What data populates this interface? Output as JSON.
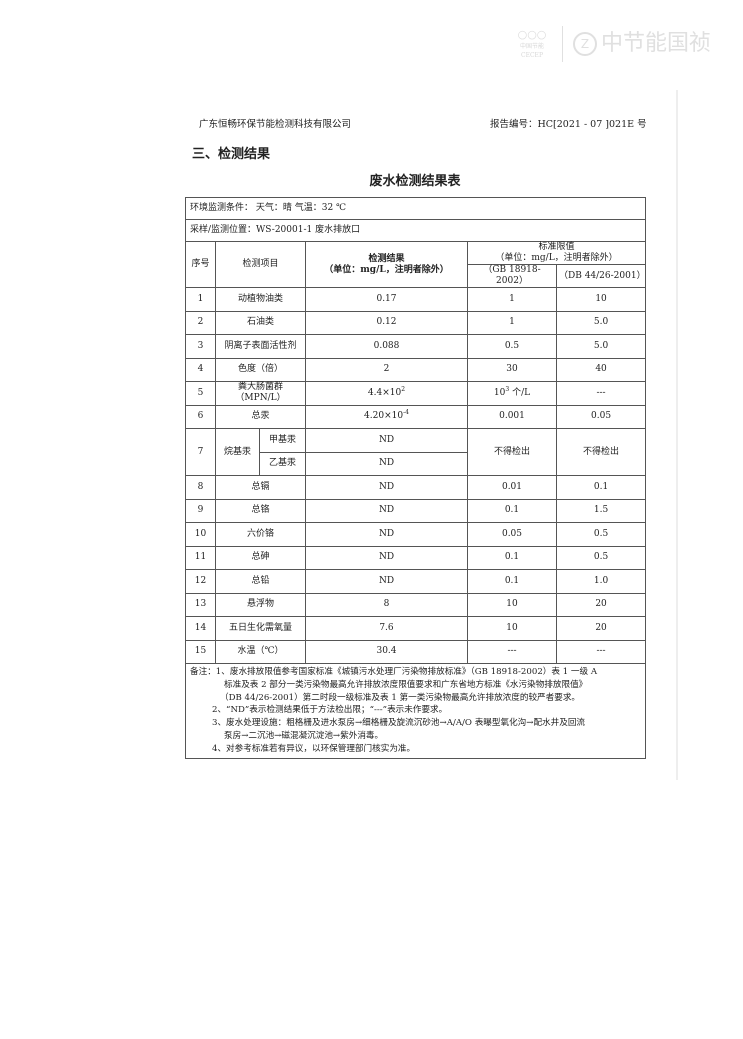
{
  "watermark": {
    "logo_small": "中国节能",
    "logo_small_en": "CECEP",
    "brand": "中节能国祯"
  },
  "header": {
    "company": "广东恒畅环保节能检测科技有限公司",
    "report_no": "报告编号：HC[2021 - 07 ]021E 号"
  },
  "section_title": "三、检测结果",
  "table_title": "废水检测结果表",
  "conditions": "环境监测条件：  天气：晴     气温：32 ℃",
  "location": "采样/监测位置：WS-20001-1 废水排放口",
  "columns": {
    "no": "序号",
    "item": "检测项目",
    "result": "检测结果",
    "result_unit": "（单位：mg/L，注明者除外）",
    "limit": "标准限值",
    "limit_unit": "（单位：mg/L，注明者除外）",
    "std1": "（GB 18918-2002）",
    "std2": "（DB 44/26-2001）"
  },
  "rows": [
    {
      "no": "1",
      "item": "动植物油类",
      "result": "0.17",
      "gb": "1",
      "db": "10"
    },
    {
      "no": "2",
      "item": "石油类",
      "result": "0.12",
      "gb": "1",
      "db": "5.0"
    },
    {
      "no": "3",
      "item": "阴离子表面活性剂",
      "result": "0.088",
      "gb": "0.5",
      "db": "5.0"
    },
    {
      "no": "4",
      "item": "色度（倍）",
      "result": "2",
      "gb": "30",
      "db": "40"
    },
    {
      "no": "5",
      "item": "粪大肠菌群",
      "item_unit": "（MPN/L）",
      "result": "4.4×10",
      "result_exp": "2",
      "gb": "10",
      "gb_exp": "3",
      "gb_unit": " 个/L",
      "db": "---"
    },
    {
      "no": "6",
      "item": "总汞",
      "result": "4.20×10",
      "result_exp": "-4",
      "gb": "0.001",
      "db": "0.05"
    }
  ],
  "row7": {
    "no": "7",
    "item": "烷基汞",
    "sub": [
      {
        "item": "甲基汞",
        "result": "ND"
      },
      {
        "item": "乙基汞",
        "result": "ND"
      }
    ],
    "gb": "不得检出",
    "db": "不得检出"
  },
  "rows2": [
    {
      "no": "8",
      "item": "总镉",
      "result": "ND",
      "gb": "0.01",
      "db": "0.1"
    },
    {
      "no": "9",
      "item": "总铬",
      "result": "ND",
      "gb": "0.1",
      "db": "1.5"
    },
    {
      "no": "10",
      "item": "六价铬",
      "result": "ND",
      "gb": "0.05",
      "db": "0.5"
    },
    {
      "no": "11",
      "item": "总砷",
      "result": "ND",
      "gb": "0.1",
      "db": "0.5"
    },
    {
      "no": "12",
      "item": "总铅",
      "result": "ND",
      "gb": "0.1",
      "db": "1.0"
    },
    {
      "no": "13",
      "item": "悬浮物",
      "result": "8",
      "gb": "10",
      "db": "20"
    },
    {
      "no": "14",
      "item": "五日生化需氧量",
      "result": "7.6",
      "gb": "10",
      "db": "20"
    },
    {
      "no": "15",
      "item": "水温（℃）",
      "result": "30.4",
      "gb": "---",
      "db": "---"
    }
  ],
  "notes": {
    "label": "备注：",
    "n1a": "1、废水排放限值参考国家标准《城镇污水处理厂污染物排放标准》（GB 18918-2002）表 1 一级 A",
    "n1b": "标准及表 2 部分一类污染物最高允许排放浓度限值要求和广东省地方标准《水污染物排放限值》",
    "n1c": "（DB 44/26-2001）第二时段一级标准及表 1 第一类污染物最高允许排放浓度的较严者要求。",
    "n2": "2、“ND”表示检测结果低于方法检出限；“---”表示未作要求。",
    "n3a": "3、废水处理设施：粗格栅及进水泵房→细格栅及旋流沉砂池→A/A/O 表曝型氧化沟→配水井及回流",
    "n3b": "泵房→二沉池→磁混凝沉淀池→紫外消毒。",
    "n4": "4、对参考标准若有异议，以环保管理部门核实为准。"
  }
}
